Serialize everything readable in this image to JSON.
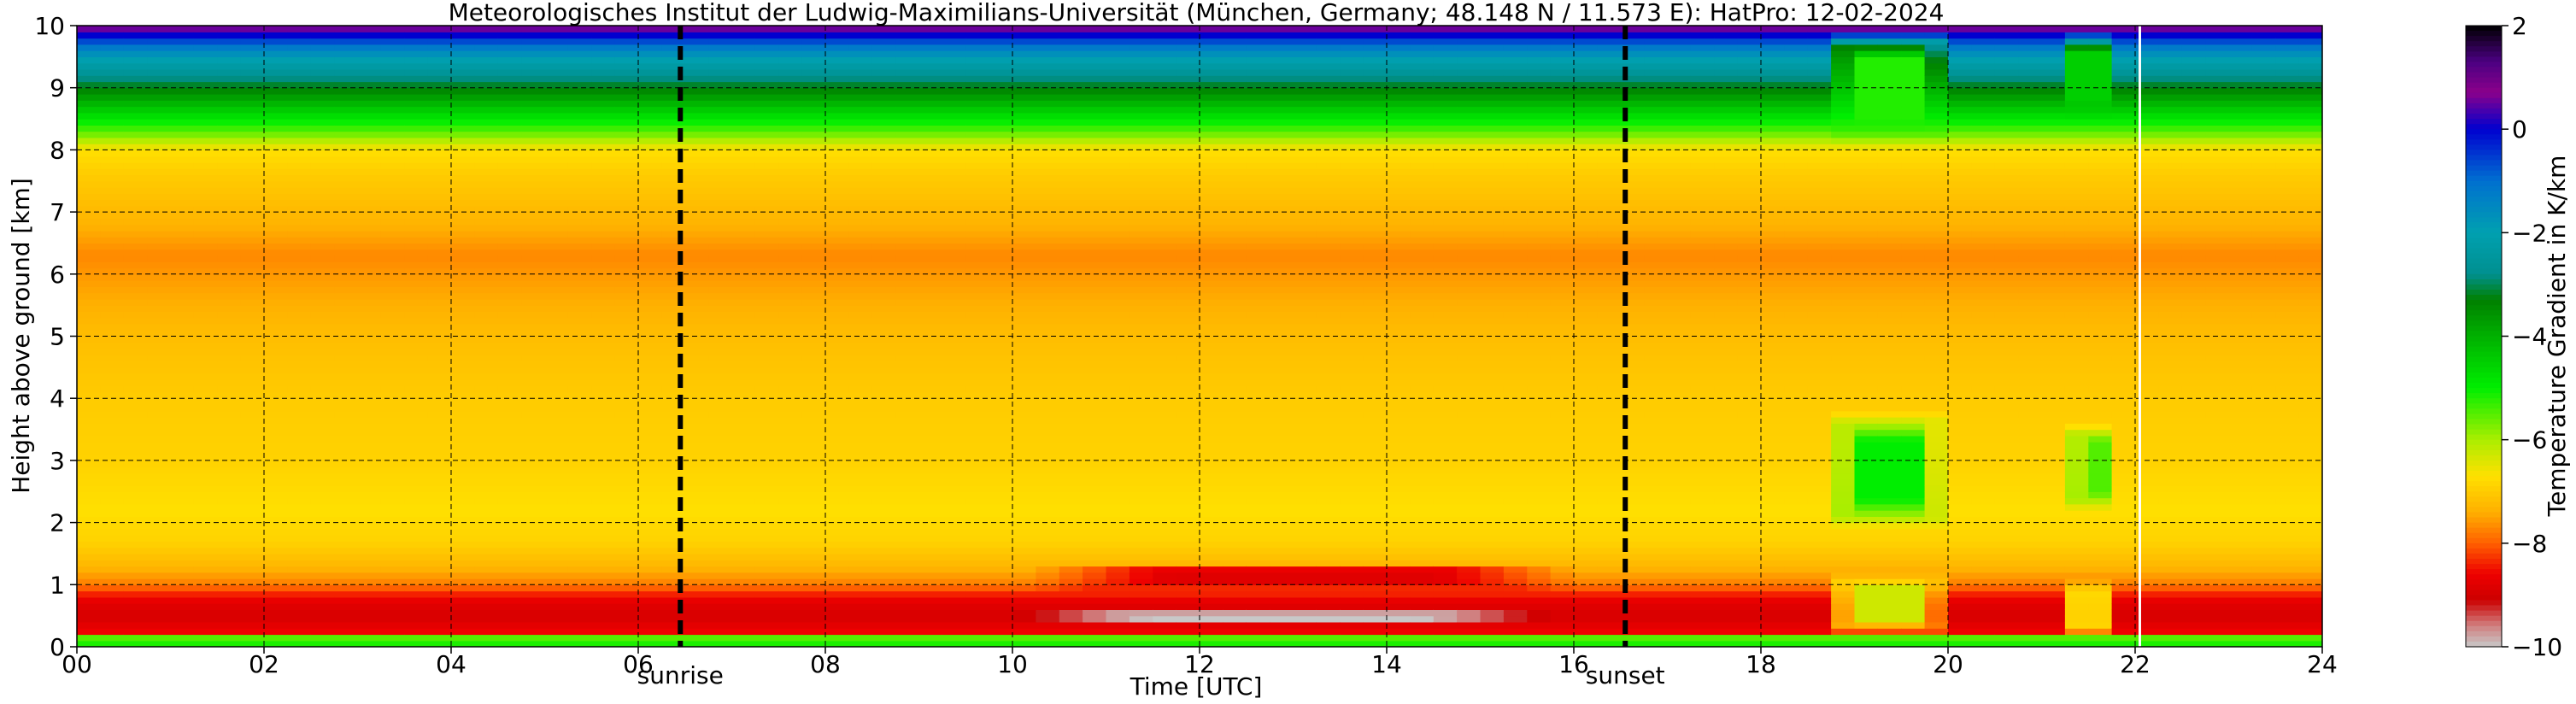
{
  "chart_data": {
    "type": "heatmap",
    "title": "Meteorologisches Institut der Ludwig-Maximilians-Universität (München, Germany; 48.148 N / 11.573 E):    HatPro: 12-02-2024",
    "xlabel": "Time [UTC]",
    "ylabel": "Height above ground [km]",
    "xlim": [
      0,
      24
    ],
    "ylim": [
      0,
      10
    ],
    "x_ticks": [
      0,
      2,
      4,
      6,
      8,
      10,
      12,
      14,
      16,
      18,
      20,
      22,
      24
    ],
    "x_tick_labels": [
      "00",
      "02",
      "04",
      "06",
      "08",
      "10",
      "12",
      "14",
      "16",
      "18",
      "20",
      "22",
      "24"
    ],
    "y_ticks": [
      0,
      1,
      2,
      3,
      4,
      5,
      6,
      7,
      8,
      9,
      10
    ],
    "y_tick_labels": [
      "0",
      "1",
      "2",
      "3",
      "4",
      "5",
      "6",
      "7",
      "8",
      "9",
      "10"
    ],
    "grid": true,
    "markers": [
      {
        "label": "sunrise",
        "x": 6.45
      },
      {
        "label": "sunset",
        "x": 16.55
      }
    ],
    "data_gap_x": 22.05,
    "colorbar": {
      "label": "Temperature Gradient in K/km",
      "range": [
        -10,
        2
      ],
      "ticks": [
        2,
        0,
        -2,
        -4,
        -6,
        -8,
        -10
      ],
      "tick_labels": [
        "2",
        "0",
        "−2",
        "−4",
        "−6",
        "−8",
        "−10"
      ],
      "stops": [
        {
          "value": 2.0,
          "color": "#000000"
        },
        {
          "value": 1.3,
          "color": "#4b0082"
        },
        {
          "value": 0.7,
          "color": "#8b008b"
        },
        {
          "value": 0.0,
          "color": "#0000d0"
        },
        {
          "value": -1.0,
          "color": "#0070d0"
        },
        {
          "value": -2.0,
          "color": "#00a0b0"
        },
        {
          "value": -2.8,
          "color": "#009090"
        },
        {
          "value": -3.3,
          "color": "#008000"
        },
        {
          "value": -4.0,
          "color": "#00b000"
        },
        {
          "value": -5.0,
          "color": "#00ee00"
        },
        {
          "value": -6.0,
          "color": "#aaee00"
        },
        {
          "value": -6.7,
          "color": "#ffe000"
        },
        {
          "value": -7.4,
          "color": "#ffb000"
        },
        {
          "value": -8.0,
          "color": "#ff6000"
        },
        {
          "value": -8.6,
          "color": "#ee0000"
        },
        {
          "value": -9.1,
          "color": "#cc0000"
        },
        {
          "value": -9.6,
          "color": "#d08080"
        },
        {
          "value": -10.0,
          "color": "#c8c8c8"
        }
      ]
    },
    "profile_base": [
      {
        "h": 0.0,
        "v": -5.0
      },
      {
        "h": 0.15,
        "v": -5.5
      },
      {
        "h": 0.25,
        "v": -8.6
      },
      {
        "h": 0.45,
        "v": -8.9
      },
      {
        "h": 0.6,
        "v": -8.9
      },
      {
        "h": 0.8,
        "v": -8.6
      },
      {
        "h": 1.0,
        "v": -7.8
      },
      {
        "h": 1.3,
        "v": -7.3
      },
      {
        "h": 1.7,
        "v": -6.9
      },
      {
        "h": 2.2,
        "v": -6.7
      },
      {
        "h": 3.0,
        "v": -6.9
      },
      {
        "h": 4.0,
        "v": -7.0
      },
      {
        "h": 5.0,
        "v": -7.2
      },
      {
        "h": 5.8,
        "v": -7.5
      },
      {
        "h": 6.3,
        "v": -7.7
      },
      {
        "h": 6.9,
        "v": -7.3
      },
      {
        "h": 7.6,
        "v": -7.0
      },
      {
        "h": 8.0,
        "v": -6.7
      },
      {
        "h": 8.3,
        "v": -5.5
      },
      {
        "h": 8.6,
        "v": -4.6
      },
      {
        "h": 8.9,
        "v": -3.6
      },
      {
        "h": 9.2,
        "v": -2.7
      },
      {
        "h": 9.5,
        "v": -1.9
      },
      {
        "h": 9.7,
        "v": -1.0
      },
      {
        "h": 9.85,
        "v": 0.0
      },
      {
        "h": 10.0,
        "v": 0.8
      }
    ],
    "time_features": [
      {
        "t0": 10.0,
        "t1": 15.8,
        "h0": 0.35,
        "h1": 0.6,
        "v": -10.0,
        "note": "warm core near 0.5 km"
      },
      {
        "t0": 10.2,
        "t1": 16.0,
        "h0": 0.9,
        "h1": 1.35,
        "v": -8.8
      },
      {
        "t0": 18.75,
        "t1": 19.95,
        "h0": 1.9,
        "h1": 3.8,
        "v": -5.0
      },
      {
        "t0": 21.3,
        "t1": 21.75,
        "h0": 2.2,
        "h1": 3.6,
        "v": -5.2
      },
      {
        "t0": 18.7,
        "t1": 20.0,
        "h0": 0.2,
        "h1": 1.2,
        "v": -6.3
      },
      {
        "t0": 21.25,
        "t1": 21.75,
        "h0": 0.15,
        "h1": 1.1,
        "v": -6.5
      },
      {
        "t0": 18.7,
        "t1": 20.0,
        "h0": 8.1,
        "h1": 9.9,
        "v": -5.2
      },
      {
        "t0": 21.2,
        "t1": 21.8,
        "h0": 8.5,
        "h1": 9.9,
        "v": -4.5
      }
    ]
  }
}
